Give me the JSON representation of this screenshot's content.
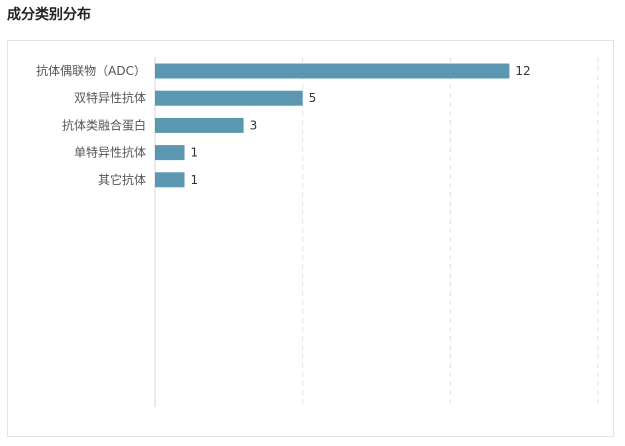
{
  "page": {
    "title": "成分类别分布"
  },
  "chart_data": {
    "type": "bar",
    "orientation": "horizontal",
    "categories": [
      "抗体偶联物（ADC）",
      "双特异性抗体",
      "抗体类融合蛋白",
      "单特异性抗体",
      "其它抗体"
    ],
    "values": [
      12,
      5,
      3,
      1,
      1
    ],
    "xlim": [
      0,
      15
    ],
    "grid": true,
    "legend": "none",
    "bar_color": "#5b97b1"
  }
}
